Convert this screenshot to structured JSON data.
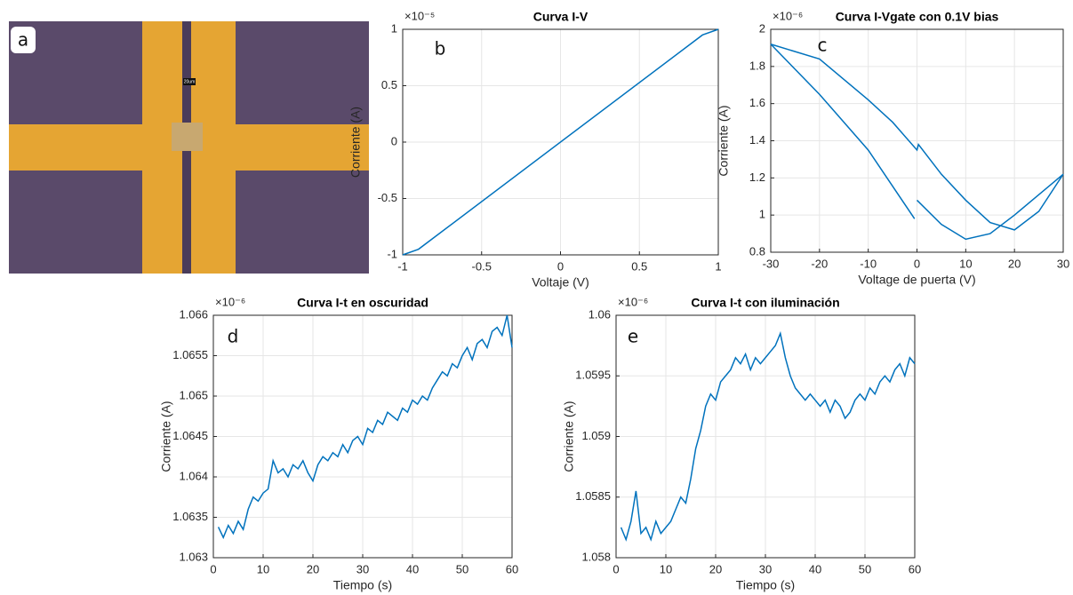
{
  "image_panel": {
    "panel_label": "a",
    "scale_bar": "20um"
  },
  "chart_data": [
    {
      "type": "line",
      "title": "Curva I-V",
      "panel_label": "b",
      "xlabel": "Voltaje (V)",
      "ylabel": "Corriente (A)",
      "y_exponent": "×10⁻⁵",
      "x": [
        -1,
        -0.9,
        0.9,
        1
      ],
      "values": [
        -1,
        -0.95,
        0.95,
        1
      ],
      "color": "#0072bd",
      "xlim": [
        -1,
        1
      ],
      "ylim": [
        -1,
        1
      ],
      "xticks": [
        -1,
        -0.5,
        0,
        0.5,
        1
      ],
      "yticks": [
        -1,
        -0.5,
        0,
        0.5,
        1
      ],
      "grid": true
    },
    {
      "type": "line",
      "title": "Curva I-Vgate con 0.1V bias",
      "panel_label": "c",
      "xlabel": "Voltage de puerta (V)",
      "ylabel": "Corriente (A)",
      "y_exponent": "×10⁻⁶",
      "x": [
        -30,
        -20,
        -10,
        -0.5,
        null,
        0,
        5,
        10,
        15,
        20,
        25,
        30,
        25,
        20,
        15,
        10,
        5,
        0.3,
        0,
        -5,
        -10,
        -20,
        -30
      ],
      "values": [
        1.92,
        1.65,
        1.35,
        0.98,
        null,
        1.08,
        0.95,
        0.87,
        0.9,
        1.0,
        1.11,
        1.22,
        1.02,
        0.92,
        0.96,
        1.08,
        1.22,
        1.38,
        1.35,
        1.5,
        1.62,
        1.84,
        1.92
      ],
      "color": "#0072bd",
      "xlim": [
        -30,
        30
      ],
      "ylim": [
        0.8,
        2
      ],
      "xticks": [
        -30,
        -20,
        -10,
        0,
        10,
        20,
        30
      ],
      "yticks": [
        0.8,
        1,
        1.2,
        1.4,
        1.6,
        1.8,
        2
      ],
      "grid": true
    },
    {
      "type": "line",
      "title": "Curva I-t en oscuridad",
      "panel_label": "d",
      "xlabel": "Tiempo (s)",
      "ylabel": "Corriente (A)",
      "y_exponent": "×10⁻⁶",
      "x": [
        1,
        2,
        3,
        4,
        5,
        6,
        7,
        8,
        9,
        10,
        11,
        12,
        13,
        14,
        15,
        16,
        17,
        18,
        19,
        20,
        21,
        22,
        23,
        24,
        25,
        26,
        27,
        28,
        29,
        30,
        31,
        32,
        33,
        34,
        35,
        36,
        37,
        38,
        39,
        40,
        41,
        42,
        43,
        44,
        45,
        46,
        47,
        48,
        49,
        50,
        51,
        52,
        53,
        54,
        55,
        56,
        57,
        58,
        59,
        60
      ],
      "values": [
        1.06338,
        1.06325,
        1.0634,
        1.0633,
        1.06345,
        1.06335,
        1.0636,
        1.06375,
        1.0637,
        1.0638,
        1.06385,
        1.0642,
        1.06405,
        1.0641,
        1.064,
        1.06415,
        1.0641,
        1.0642,
        1.06405,
        1.06395,
        1.06415,
        1.06425,
        1.0642,
        1.0643,
        1.06425,
        1.0644,
        1.0643,
        1.06445,
        1.0645,
        1.0644,
        1.0646,
        1.06455,
        1.0647,
        1.06465,
        1.0648,
        1.06475,
        1.0647,
        1.06485,
        1.0648,
        1.06495,
        1.0649,
        1.065,
        1.06495,
        1.0651,
        1.0652,
        1.0653,
        1.06525,
        1.0654,
        1.06535,
        1.0655,
        1.0656,
        1.06545,
        1.06565,
        1.0657,
        1.0656,
        1.0658,
        1.06585,
        1.06575,
        1.066,
        1.0656
      ],
      "color": "#0072bd",
      "xlim": [
        0,
        60
      ],
      "ylim": [
        1.063,
        1.066
      ],
      "xticks": [
        0,
        10,
        20,
        30,
        40,
        50,
        60
      ],
      "yticks": [
        1.063,
        1.0635,
        1.064,
        1.0645,
        1.065,
        1.0655,
        1.066
      ],
      "grid": true
    },
    {
      "type": "line",
      "title": "Curva I-t con iluminación",
      "panel_label": "e",
      "xlabel": "Tiempo (s)",
      "ylabel": "Corriente (A)",
      "y_exponent": "×10⁻⁶",
      "x": [
        1,
        2,
        3,
        4,
        5,
        6,
        7,
        8,
        9,
        10,
        11,
        12,
        13,
        14,
        15,
        16,
        17,
        18,
        19,
        20,
        21,
        22,
        23,
        24,
        25,
        26,
        27,
        28,
        29,
        30,
        31,
        32,
        33,
        34,
        35,
        36,
        37,
        38,
        39,
        40,
        41,
        42,
        43,
        44,
        45,
        46,
        47,
        48,
        49,
        50,
        51,
        52,
        53,
        54,
        55,
        56,
        57,
        58,
        59,
        60
      ],
      "values": [
        1.05825,
        1.05815,
        1.0583,
        1.05855,
        1.0582,
        1.05825,
        1.05815,
        1.0583,
        1.0582,
        1.05825,
        1.0583,
        1.0584,
        1.0585,
        1.05845,
        1.05865,
        1.0589,
        1.05905,
        1.05925,
        1.05935,
        1.0593,
        1.05945,
        1.0595,
        1.05955,
        1.05965,
        1.0596,
        1.05968,
        1.05955,
        1.05965,
        1.0596,
        1.05965,
        1.0597,
        1.05975,
        1.05985,
        1.05965,
        1.0595,
        1.0594,
        1.05935,
        1.0593,
        1.05935,
        1.0593,
        1.05925,
        1.0593,
        1.0592,
        1.0593,
        1.05925,
        1.05915,
        1.0592,
        1.0593,
        1.05935,
        1.0593,
        1.0594,
        1.05935,
        1.05945,
        1.0595,
        1.05945,
        1.05955,
        1.0596,
        1.0595,
        1.05965,
        1.0596
      ],
      "color": "#0072bd",
      "xlim": [
        0,
        60
      ],
      "ylim": [
        1.058,
        1.06
      ],
      "xticks": [
        0,
        10,
        20,
        30,
        40,
        50,
        60
      ],
      "yticks": [
        1.058,
        1.0585,
        1.059,
        1.0595,
        1.06
      ],
      "grid": true
    }
  ]
}
